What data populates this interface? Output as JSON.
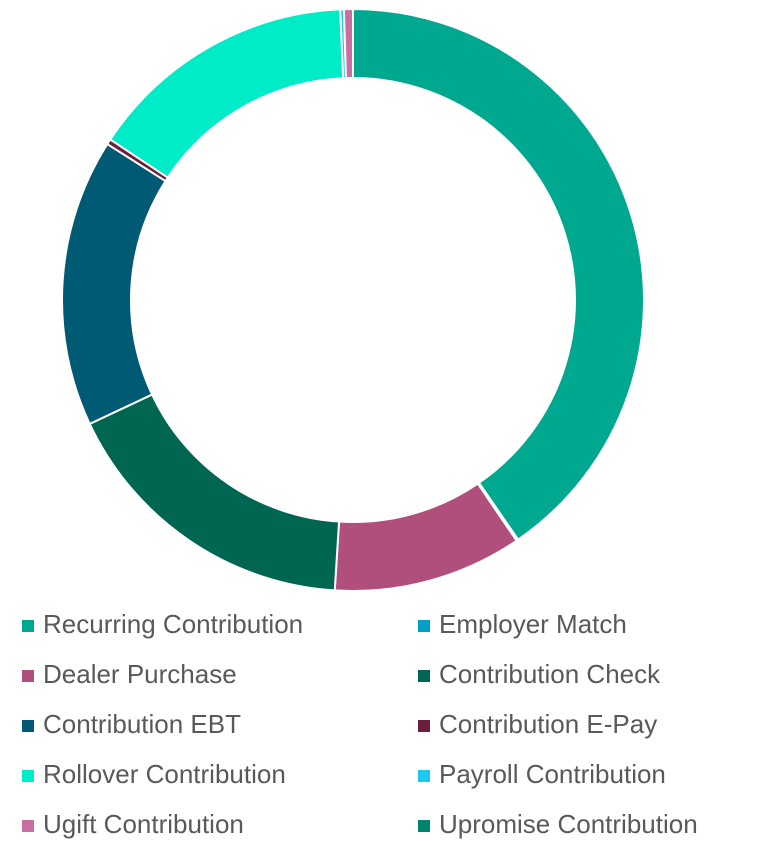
{
  "chart_data": {
    "type": "donut",
    "categories": [
      "Recurring Contribution",
      "Employer Match",
      "Dealer Purchase",
      "Contribution Check",
      "Contribution EBT",
      "Contribution E-Pay",
      "Rollover Contribution",
      "Payroll Contribution",
      "Ugift Contribution",
      "Upromise Contribution"
    ],
    "values": [
      40.4,
      0.1,
      10.5,
      17,
      16,
      0.3,
      15,
      0.2,
      0.5,
      0
    ],
    "colors": [
      "#00a88f",
      "#00a0c6",
      "#b04e7c",
      "#006652",
      "#005a73",
      "#6b1f3f",
      "#00ebc8",
      "#1ec8f0",
      "#c86ea0",
      "#00846e"
    ],
    "legend": "bottom"
  }
}
